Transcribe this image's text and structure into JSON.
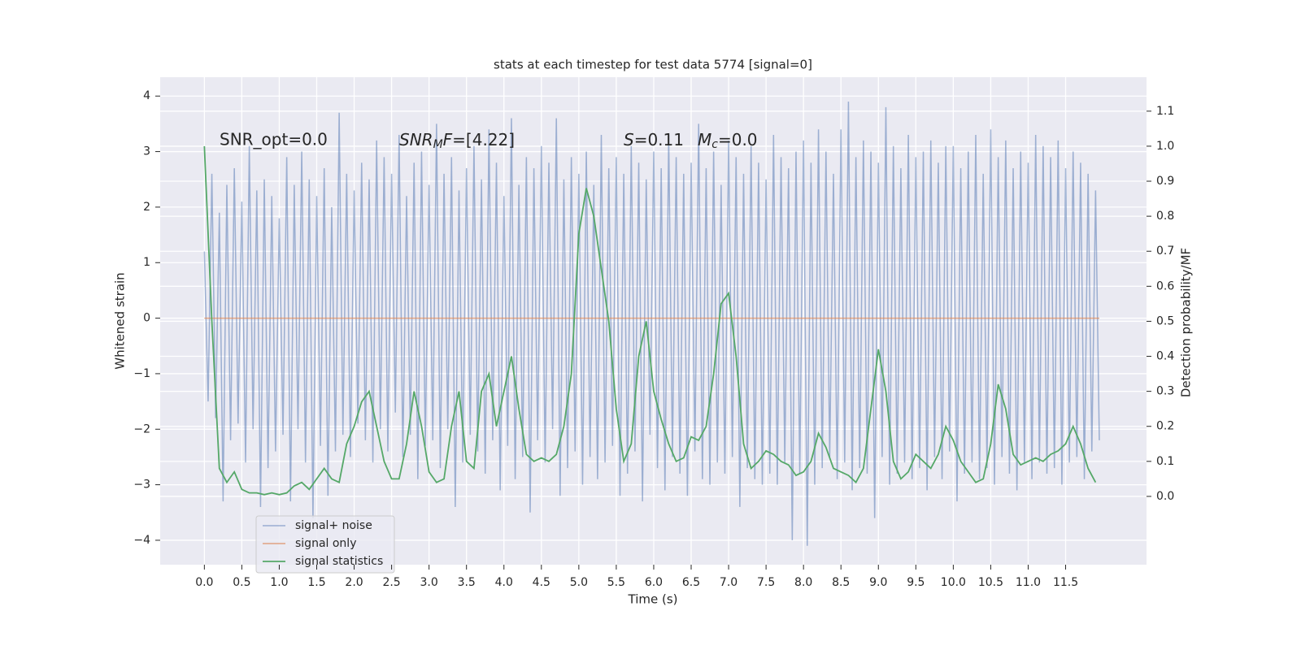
{
  "chart_data": {
    "type": "line",
    "title": "stats at each timestep for test data 5774 [signal=0]",
    "xlabel": "Time (s)",
    "ylabel": "Whitened strain",
    "y2label": "Detection probability/MF",
    "annotations": [
      "SNR_opt=0.0",
      [
        "SNR",
        "M",
        "F",
        "=[4.22]"
      ],
      [
        "S",
        "=0.11"
      ],
      [
        "M",
        "c",
        "=0.0"
      ]
    ],
    "xlim": [
      -0.59,
      12.58
    ],
    "ylim": [
      -4.44,
      4.34
    ],
    "y2lim": [
      -0.195,
      1.197
    ],
    "xticks": [
      {
        "value": 0,
        "label": "0.0"
      },
      0.5,
      {
        "value": 1,
        "label": "1.0"
      },
      1.5,
      {
        "value": 2,
        "label": "2.0"
      },
      2.5,
      {
        "value": 3,
        "label": "3.0"
      },
      3.5,
      {
        "value": 4,
        "label": "4.0"
      },
      4.5,
      {
        "value": 5,
        "label": "5.0"
      },
      5.5,
      {
        "value": 6,
        "label": "6.0"
      },
      6.5,
      {
        "value": 7,
        "label": "7.0"
      },
      7.5,
      {
        "value": 8,
        "label": "8.0"
      },
      8.5,
      {
        "value": 9,
        "label": "9.0"
      },
      9.5,
      {
        "value": 10,
        "label": "10.0"
      },
      10.5,
      {
        "value": 11,
        "label": "11.0"
      },
      11.5
    ],
    "yticks": [
      {
        "value": -4,
        "label": "−4"
      },
      {
        "value": -3,
        "label": "−3"
      },
      {
        "value": -2,
        "label": "−2"
      },
      {
        "value": -1,
        "label": "−1"
      },
      0,
      1,
      2,
      3,
      4
    ],
    "y2ticks": [
      {
        "value": 0,
        "label": "0.0"
      },
      0.1,
      0.2,
      0.3,
      0.4,
      0.5,
      0.6,
      0.7,
      0.8,
      0.9,
      {
        "value": 1,
        "label": "1.0"
      },
      1.1
    ],
    "grid": true,
    "legend": "lower left",
    "series": [
      {
        "name": "signal+ noise",
        "color": "#4c72b0",
        "x": [
          0,
          0.05,
          0.1,
          0.15,
          0.2,
          0.25,
          0.3,
          0.35,
          0.4,
          0.45,
          0.5,
          0.55,
          0.6,
          0.65,
          0.7,
          0.75,
          0.8,
          0.85,
          0.9,
          0.95,
          1,
          1.05,
          1.1,
          1.15,
          1.2,
          1.25,
          1.3,
          1.35,
          1.4,
          1.45,
          1.5,
          1.55,
          1.6,
          1.65,
          1.7,
          1.75,
          1.8,
          1.85,
          1.9,
          1.95,
          2,
          2.05,
          2.1,
          2.15,
          2.2,
          2.25,
          2.3,
          2.35,
          2.4,
          2.45,
          2.5,
          2.55,
          2.6,
          2.65,
          2.7,
          2.75,
          2.8,
          2.85,
          2.9,
          2.95,
          3,
          3.05,
          3.1,
          3.15,
          3.2,
          3.25,
          3.3,
          3.35,
          3.4,
          3.45,
          3.5,
          3.55,
          3.6,
          3.65,
          3.7,
          3.75,
          3.8,
          3.85,
          3.9,
          3.95,
          4,
          4.05,
          4.1,
          4.15,
          4.2,
          4.25,
          4.3,
          4.35,
          4.4,
          4.45,
          4.5,
          4.55,
          4.6,
          4.65,
          4.7,
          4.75,
          4.8,
          4.85,
          4.9,
          4.95,
          5,
          5.05,
          5.1,
          5.15,
          5.2,
          5.25,
          5.3,
          5.35,
          5.4,
          5.45,
          5.5,
          5.55,
          5.6,
          5.65,
          5.7,
          5.75,
          5.8,
          5.85,
          5.9,
          5.95,
          6,
          6.05,
          6.1,
          6.15,
          6.2,
          6.25,
          6.3,
          6.35,
          6.4,
          6.45,
          6.5,
          6.55,
          6.6,
          6.65,
          6.7,
          6.75,
          6.8,
          6.85,
          6.9,
          6.95,
          7,
          7.05,
          7.1,
          7.15,
          7.2,
          7.25,
          7.3,
          7.35,
          7.4,
          7.45,
          7.5,
          7.55,
          7.6,
          7.65,
          7.7,
          7.75,
          7.8,
          7.85,
          7.9,
          7.95,
          8,
          8.05,
          8.1,
          8.15,
          8.2,
          8.25,
          8.3,
          8.35,
          8.4,
          8.45,
          8.5,
          8.55,
          8.6,
          8.65,
          8.7,
          8.75,
          8.8,
          8.85,
          8.9,
          8.95,
          9,
          9.05,
          9.1,
          9.15,
          9.2,
          9.25,
          9.3,
          9.35,
          9.4,
          9.45,
          9.5,
          9.55,
          9.6,
          9.65,
          9.7,
          9.75,
          9.8,
          9.85,
          9.9,
          9.95,
          10,
          10.05,
          10.1,
          10.15,
          10.2,
          10.25,
          10.3,
          10.35,
          10.4,
          10.45,
          10.5,
          10.55,
          10.6,
          10.65,
          10.7,
          10.75,
          10.8,
          10.85,
          10.9,
          10.95,
          11,
          11.05,
          11.1,
          11.15,
          11.2,
          11.25,
          11.3,
          11.35,
          11.4,
          11.45,
          11.5,
          11.55,
          11.6,
          11.65,
          11.7,
          11.75,
          11.8,
          11.85,
          11.9,
          11.95
        ],
        "values": [
          1.2,
          -1.5,
          2.6,
          -1.8,
          1.9,
          -3.3,
          2.4,
          -2.2,
          2.7,
          -1.9,
          2.1,
          -2.6,
          3.1,
          -2.0,
          2.3,
          -3.4,
          2.5,
          -2.7,
          2.2,
          -2.4,
          1.8,
          -2.1,
          2.9,
          -3.3,
          2.4,
          -2.0,
          3.0,
          -2.6,
          2.5,
          -3.6,
          2.2,
          -2.3,
          2.7,
          -3.2,
          2.0,
          -2.4,
          3.7,
          -2.1,
          2.6,
          -2.5,
          2.3,
          -1.9,
          2.8,
          -2.2,
          2.5,
          -2.6,
          3.2,
          -2.0,
          2.9,
          -2.4,
          2.6,
          -1.7,
          3.3,
          -2.5,
          2.2,
          -2.1,
          2.8,
          -2.9,
          3.0,
          -2.3,
          2.4,
          -2.2,
          3.5,
          -2.7,
          2.6,
          -2.0,
          2.9,
          -3.4,
          2.3,
          -2.6,
          2.7,
          -2.1,
          3.1,
          -2.4,
          2.5,
          -2.8,
          3.4,
          -2.2,
          2.8,
          -3.1,
          2.2,
          -2.3,
          3.6,
          -2.9,
          2.4,
          -2.5,
          2.9,
          -3.5,
          2.7,
          -2.2,
          3.1,
          -2.6,
          2.8,
          -2.0,
          3.6,
          -3.2,
          2.5,
          -2.7,
          2.9,
          -2.4,
          2.6,
          -3.0,
          3.0,
          -2.5,
          2.4,
          -2.9,
          3.3,
          -2.6,
          2.7,
          -2.3,
          2.9,
          -3.2,
          2.6,
          -2.8,
          3.1,
          -2.4,
          2.8,
          -3.3,
          2.5,
          -2.1,
          3.0,
          -2.7,
          2.7,
          -3.1,
          3.3,
          -2.5,
          2.9,
          -2.8,
          2.6,
          -3.2,
          2.8,
          -2.4,
          3.5,
          -2.9,
          2.7,
          -3.0,
          3.0,
          -2.6,
          2.4,
          -2.8,
          3.2,
          -2.5,
          2.9,
          -3.4,
          2.6,
          -2.7,
          3.1,
          -2.9,
          2.8,
          -3.0,
          2.5,
          -2.8,
          3.3,
          -3.0,
          2.9,
          -2.6,
          2.7,
          -4.0,
          3.0,
          -2.8,
          3.2,
          -4.1,
          2.8,
          -3.0,
          3.4,
          -2.7,
          3.0,
          -2.5,
          2.6,
          -2.9,
          3.4,
          -2.6,
          3.9,
          -3.1,
          2.9,
          -2.7,
          3.2,
          -2.8,
          3.0,
          -3.6,
          2.8,
          -2.5,
          3.8,
          -3.0,
          3.1,
          -2.8,
          2.7,
          -2.6,
          3.3,
          -2.9,
          2.9,
          -2.7,
          3.0,
          -3.1,
          3.2,
          -2.5,
          2.8,
          -2.9,
          3.1,
          -2.4,
          3.1,
          -3.3,
          2.7,
          -2.8,
          3.0,
          -2.6,
          3.3,
          -2.9,
          2.6,
          -2.7,
          3.4,
          -3.0,
          2.9,
          -2.5,
          3.2,
          -2.8,
          2.7,
          -3.1,
          3.0,
          -2.6,
          2.8,
          -2.9,
          3.3,
          -2.6,
          3.1,
          -2.8,
          2.9,
          -2.7,
          3.2,
          -3.0,
          2.7,
          -2.6,
          3.0,
          -2.5,
          2.8,
          -2.9,
          2.6,
          -2.4,
          2.3,
          -2.2
        ]
      },
      {
        "name": "signal only",
        "color": "#dd8452",
        "x": [
          0,
          11.95
        ],
        "values": [
          0,
          0
        ]
      },
      {
        "name": "signal statistics",
        "color": "#55a868",
        "axis": "y2",
        "x": [
          0,
          0.1,
          0.2,
          0.3,
          0.4,
          0.5,
          0.6,
          0.7,
          0.8,
          0.9,
          1,
          1.1,
          1.2,
          1.3,
          1.4,
          1.5,
          1.6,
          1.7,
          1.8,
          1.9,
          2,
          2.1,
          2.2,
          2.3,
          2.4,
          2.5,
          2.6,
          2.7,
          2.8,
          2.9,
          3,
          3.1,
          3.2,
          3.3,
          3.4,
          3.5,
          3.6,
          3.7,
          3.8,
          3.9,
          4,
          4.1,
          4.2,
          4.3,
          4.4,
          4.5,
          4.6,
          4.7,
          4.8,
          4.9,
          5,
          5.1,
          5.2,
          5.3,
          5.4,
          5.5,
          5.6,
          5.7,
          5.8,
          5.9,
          6,
          6.1,
          6.2,
          6.3,
          6.4,
          6.5,
          6.6,
          6.7,
          6.8,
          6.9,
          7,
          7.1,
          7.2,
          7.3,
          7.4,
          7.5,
          7.6,
          7.7,
          7.8,
          7.9,
          8,
          8.1,
          8.2,
          8.3,
          8.4,
          8.5,
          8.6,
          8.7,
          8.8,
          8.9,
          9,
          9.1,
          9.2,
          9.3,
          9.4,
          9.5,
          9.6,
          9.7,
          9.8,
          9.9,
          10,
          10.1,
          10.2,
          10.3,
          10.4,
          10.5,
          10.6,
          10.7,
          10.8,
          10.9,
          11,
          11.1,
          11.2,
          11.3,
          11.4,
          11.5,
          11.6,
          11.7,
          11.8,
          11.9
        ],
        "values": [
          1.0,
          0.5,
          0.08,
          0.04,
          0.07,
          0.02,
          0.01,
          0.01,
          0.005,
          0.01,
          0.005,
          0.01,
          0.03,
          0.04,
          0.02,
          0.05,
          0.08,
          0.05,
          0.04,
          0.15,
          0.2,
          0.27,
          0.3,
          0.2,
          0.1,
          0.05,
          0.05,
          0.15,
          0.3,
          0.2,
          0.07,
          0.04,
          0.05,
          0.2,
          0.3,
          0.1,
          0.08,
          0.3,
          0.35,
          0.2,
          0.3,
          0.4,
          0.25,
          0.12,
          0.1,
          0.11,
          0.1,
          0.12,
          0.2,
          0.35,
          0.75,
          0.88,
          0.8,
          0.65,
          0.5,
          0.25,
          0.1,
          0.15,
          0.4,
          0.5,
          0.3,
          0.22,
          0.15,
          0.1,
          0.11,
          0.17,
          0.16,
          0.2,
          0.35,
          0.55,
          0.58,
          0.4,
          0.15,
          0.08,
          0.1,
          0.13,
          0.12,
          0.1,
          0.09,
          0.06,
          0.07,
          0.1,
          0.18,
          0.14,
          0.08,
          0.07,
          0.06,
          0.04,
          0.08,
          0.25,
          0.42,
          0.3,
          0.1,
          0.05,
          0.07,
          0.12,
          0.1,
          0.08,
          0.12,
          0.2,
          0.16,
          0.1,
          0.07,
          0.04,
          0.05,
          0.15,
          0.32,
          0.25,
          0.12,
          0.09,
          0.1,
          0.11,
          0.1,
          0.12,
          0.13,
          0.15,
          0.2,
          0.15,
          0.08,
          0.04
        ]
      }
    ]
  }
}
